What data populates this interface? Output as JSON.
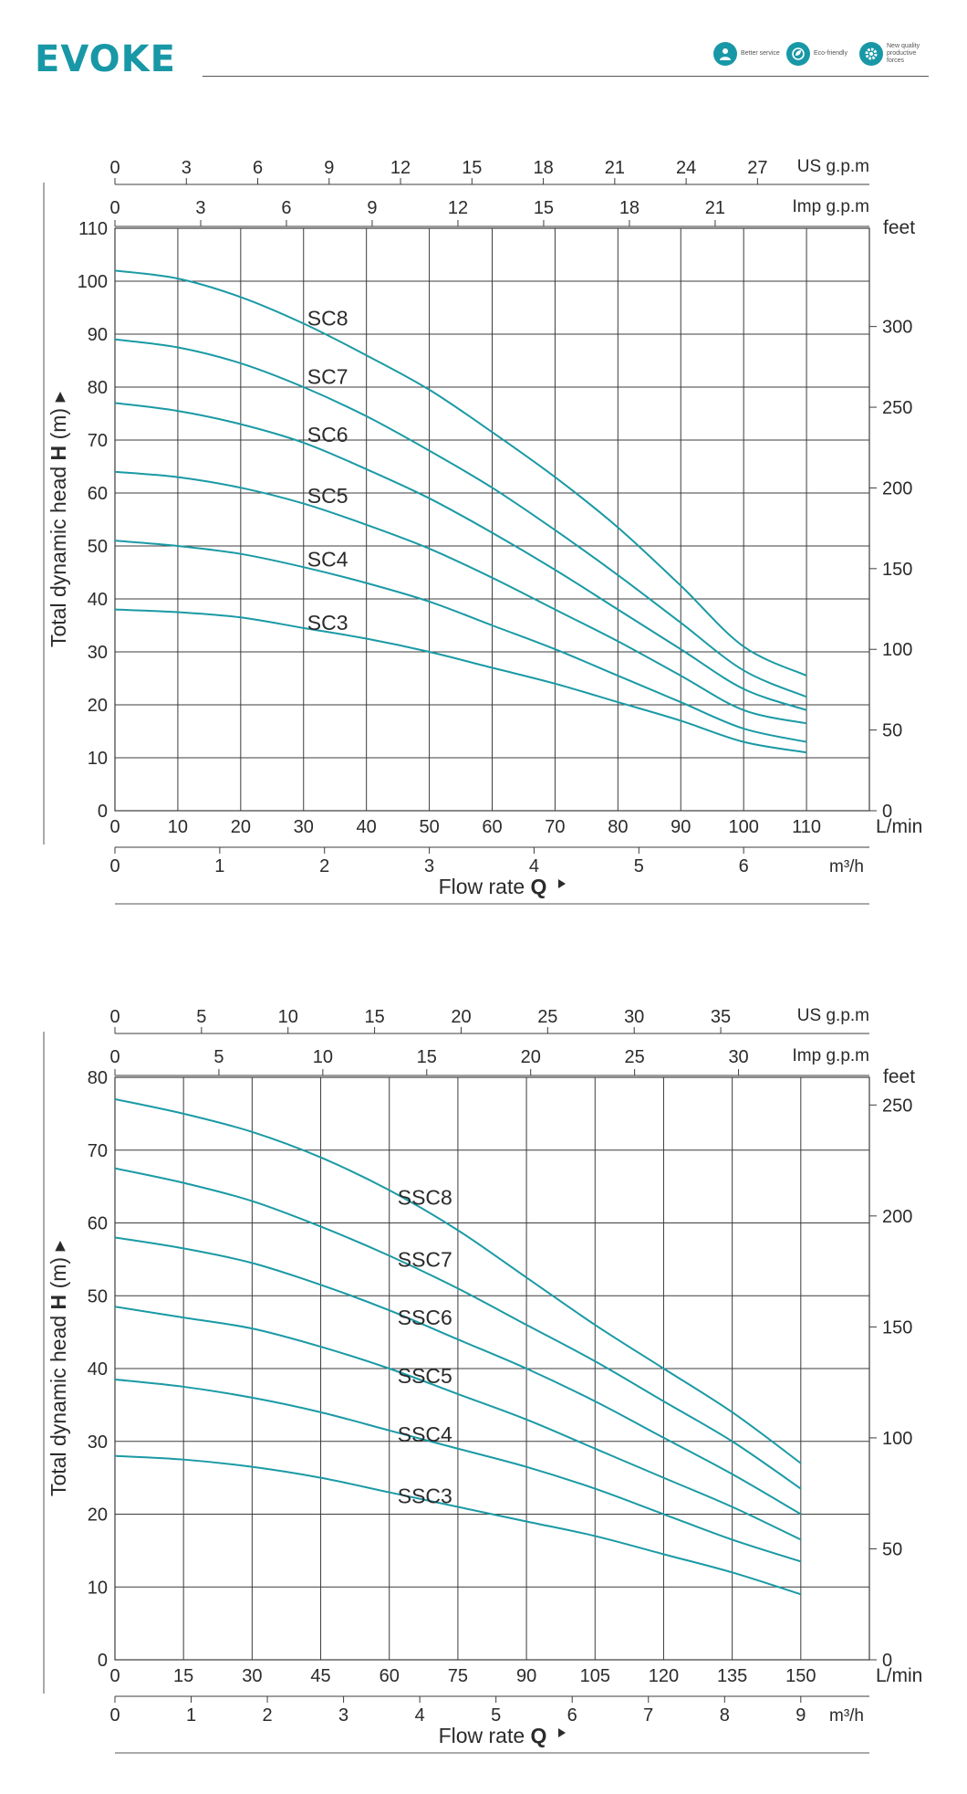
{
  "header": {
    "logo": "EVOKE",
    "badges": [
      {
        "icon": "service-person-icon",
        "text": "Better service"
      },
      {
        "icon": "eco-leaf-icon",
        "text": "Eco-friendly"
      },
      {
        "icon": "gear-icon",
        "text": "New quality productive forces"
      }
    ]
  },
  "colors": {
    "curve": "#1a9aa5",
    "grid": "#3c3c3c",
    "text": "#2b2b2b",
    "brand": "#1898a6"
  },
  "chart_data": [
    {
      "type": "line",
      "ylabel_prefix": "Total dynamic head ",
      "ylabel_bold": "H",
      "ylabel_suffix": " (m)",
      "xlabel_prefix": "Flow rate ",
      "xlabel_bold": "Q",
      "x_unit": "L/min",
      "x2_unit": "m³/h",
      "top1_unit": "US g.p.m",
      "top2_unit": "Imp g.p.m",
      "right_unit": "feet",
      "xlim": [
        0,
        120
      ],
      "ylim": [
        0,
        110
      ],
      "x_ticks": [
        0,
        10,
        20,
        30,
        40,
        50,
        60,
        70,
        80,
        90,
        100,
        110
      ],
      "y_ticks": [
        0,
        10,
        20,
        30,
        40,
        50,
        60,
        70,
        80,
        90,
        100,
        110
      ],
      "m3h_ticks": [
        0,
        1,
        2,
        3,
        4,
        5,
        6
      ],
      "usgpm_ticks": [
        0,
        3,
        6,
        9,
        12,
        15,
        18,
        21,
        24,
        27
      ],
      "impgpm_ticks": [
        0,
        3,
        6,
        9,
        12,
        15,
        18,
        21
      ],
      "feet_ticks": [
        0,
        50,
        100,
        150,
        200,
        250,
        300
      ],
      "series": [
        {
          "name": "SC8",
          "label_at": [
            30,
            93
          ],
          "points": [
            [
              0,
              102
            ],
            [
              10,
              100.5
            ],
            [
              20,
              97
            ],
            [
              30,
              92
            ],
            [
              40,
              86
            ],
            [
              50,
              79.5
            ],
            [
              60,
              71.5
            ],
            [
              70,
              63
            ],
            [
              80,
              53.5
            ],
            [
              90,
              42.5
            ],
            [
              100,
              31
            ],
            [
              110,
              25.5
            ]
          ]
        },
        {
          "name": "SC7",
          "label_at": [
            30,
            82
          ],
          "points": [
            [
              0,
              89
            ],
            [
              10,
              87.5
            ],
            [
              20,
              84.5
            ],
            [
              30,
              80
            ],
            [
              40,
              74.5
            ],
            [
              50,
              68
            ],
            [
              60,
              61
            ],
            [
              70,
              53
            ],
            [
              80,
              44.5
            ],
            [
              90,
              35.5
            ],
            [
              100,
              26.5
            ],
            [
              110,
              21.5
            ]
          ]
        },
        {
          "name": "SC6",
          "label_at": [
            30,
            71
          ],
          "points": [
            [
              0,
              77
            ],
            [
              10,
              75.5
            ],
            [
              20,
              73
            ],
            [
              30,
              69.5
            ],
            [
              40,
              64.5
            ],
            [
              50,
              59
            ],
            [
              60,
              52.5
            ],
            [
              70,
              45.5
            ],
            [
              80,
              38
            ],
            [
              90,
              30.5
            ],
            [
              100,
              23
            ],
            [
              110,
              19
            ]
          ]
        },
        {
          "name": "SC5",
          "label_at": [
            30,
            59.5
          ],
          "points": [
            [
              0,
              64
            ],
            [
              10,
              63
            ],
            [
              20,
              61
            ],
            [
              30,
              58
            ],
            [
              40,
              54
            ],
            [
              50,
              49.5
            ],
            [
              60,
              44
            ],
            [
              70,
              38
            ],
            [
              80,
              32
            ],
            [
              90,
              25.5
            ],
            [
              100,
              19
            ],
            [
              110,
              16.5
            ]
          ]
        },
        {
          "name": "SC4",
          "label_at": [
            30,
            47.5
          ],
          "points": [
            [
              0,
              51
            ],
            [
              10,
              50
            ],
            [
              20,
              48.5
            ],
            [
              30,
              46
            ],
            [
              40,
              43
            ],
            [
              50,
              39.5
            ],
            [
              60,
              35
            ],
            [
              70,
              30.5
            ],
            [
              80,
              25.5
            ],
            [
              90,
              20.5
            ],
            [
              100,
              15.5
            ],
            [
              110,
              13
            ]
          ]
        },
        {
          "name": "SC3",
          "label_at": [
            30,
            35.5
          ],
          "points": [
            [
              0,
              38
            ],
            [
              10,
              37.5
            ],
            [
              20,
              36.5
            ],
            [
              30,
              34.5
            ],
            [
              40,
              32.5
            ],
            [
              50,
              30
            ],
            [
              60,
              27
            ],
            [
              70,
              24
            ],
            [
              80,
              20.5
            ],
            [
              90,
              17
            ],
            [
              100,
              13
            ],
            [
              110,
              11
            ]
          ]
        }
      ]
    },
    {
      "type": "line",
      "ylabel_prefix": "Total dynamic head ",
      "ylabel_bold": "H",
      "ylabel_suffix": " (m)",
      "xlabel_prefix": "Flow rate ",
      "xlabel_bold": "Q",
      "x_unit": "L/min",
      "x2_unit": "m³/h",
      "top1_unit": "US g.p.m",
      "top2_unit": "Imp g.p.m",
      "right_unit": "feet",
      "xlim": [
        0,
        165
      ],
      "ylim": [
        0,
        80
      ],
      "x_ticks": [
        0,
        15,
        30,
        45,
        60,
        75,
        90,
        105,
        120,
        135,
        150
      ],
      "y_ticks": [
        0,
        10,
        20,
        30,
        40,
        50,
        60,
        70,
        80
      ],
      "m3h_ticks": [
        0,
        1,
        2,
        3,
        4,
        5,
        6,
        7,
        8,
        9
      ],
      "usgpm_ticks": [
        0,
        5,
        10,
        15,
        20,
        25,
        30,
        35
      ],
      "impgpm_ticks": [
        0,
        5,
        10,
        15,
        20,
        25,
        30
      ],
      "feet_ticks": [
        0,
        50,
        100,
        150,
        200,
        250
      ],
      "series": [
        {
          "name": "SSC8",
          "label_at": [
            61,
            63.5
          ],
          "points": [
            [
              0,
              77
            ],
            [
              15,
              75
            ],
            [
              30,
              72.5
            ],
            [
              45,
              69
            ],
            [
              60,
              64.5
            ],
            [
              75,
              59
            ],
            [
              90,
              52.5
            ],
            [
              105,
              46
            ],
            [
              120,
              40
            ],
            [
              135,
              34
            ],
            [
              150,
              27
            ]
          ]
        },
        {
          "name": "SSC7",
          "label_at": [
            61,
            55
          ],
          "points": [
            [
              0,
              67.5
            ],
            [
              15,
              65.5
            ],
            [
              30,
              63
            ],
            [
              45,
              59.5
            ],
            [
              60,
              55.5
            ],
            [
              75,
              51
            ],
            [
              90,
              46
            ],
            [
              105,
              41
            ],
            [
              120,
              35.5
            ],
            [
              135,
              30
            ],
            [
              150,
              23.5
            ]
          ]
        },
        {
          "name": "SSC6",
          "label_at": [
            61,
            47
          ],
          "points": [
            [
              0,
              58
            ],
            [
              15,
              56.5
            ],
            [
              30,
              54.5
            ],
            [
              45,
              51.5
            ],
            [
              60,
              48
            ],
            [
              75,
              44
            ],
            [
              90,
              40
            ],
            [
              105,
              35.5
            ],
            [
              120,
              30.5
            ],
            [
              135,
              25.5
            ],
            [
              150,
              20
            ]
          ]
        },
        {
          "name": "SSC5",
          "label_at": [
            61,
            39
          ],
          "points": [
            [
              0,
              48.5
            ],
            [
              15,
              47
            ],
            [
              30,
              45.5
            ],
            [
              45,
              43
            ],
            [
              60,
              40
            ],
            [
              75,
              36.5
            ],
            [
              90,
              33
            ],
            [
              105,
              29
            ],
            [
              120,
              25
            ],
            [
              135,
              21
            ],
            [
              150,
              16.5
            ]
          ]
        },
        {
          "name": "SSC4",
          "label_at": [
            61,
            31
          ],
          "points": [
            [
              0,
              38.5
            ],
            [
              15,
              37.5
            ],
            [
              30,
              36
            ],
            [
              45,
              34
            ],
            [
              60,
              31.5
            ],
            [
              75,
              29
            ],
            [
              90,
              26.5
            ],
            [
              105,
              23.5
            ],
            [
              120,
              20
            ],
            [
              135,
              16.5
            ],
            [
              150,
              13.5
            ]
          ]
        },
        {
          "name": "SSC3",
          "label_at": [
            61,
            22.5
          ],
          "points": [
            [
              0,
              28
            ],
            [
              15,
              27.5
            ],
            [
              30,
              26.5
            ],
            [
              45,
              25
            ],
            [
              60,
              23
            ],
            [
              75,
              21
            ],
            [
              90,
              19
            ],
            [
              105,
              17
            ],
            [
              120,
              14.5
            ],
            [
              135,
              12
            ],
            [
              150,
              9
            ]
          ]
        }
      ]
    }
  ]
}
